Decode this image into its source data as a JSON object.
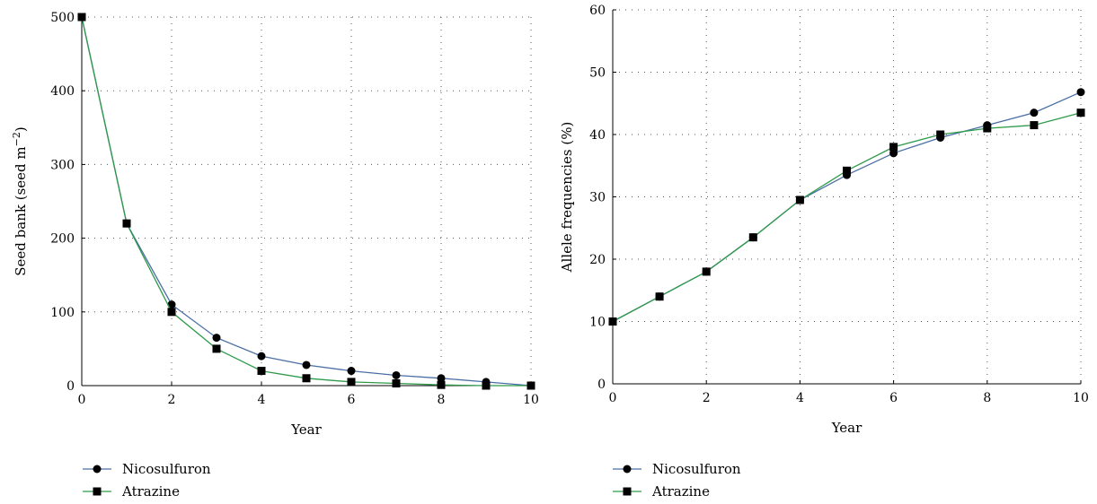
{
  "chart_data": [
    {
      "type": "line",
      "title": "",
      "xlabel": "Year",
      "ylabel": "Seed bank (seed m",
      "ylabel_sup": "−2",
      "ylabel_suffix": ")",
      "xlim": [
        0,
        10
      ],
      "ylim": [
        0,
        500
      ],
      "xticks": [
        0,
        2,
        4,
        6,
        8,
        10
      ],
      "yticks": [
        0,
        100,
        200,
        300,
        400,
        500
      ],
      "grid": true,
      "legend_position": "bottom-left",
      "series": [
        {
          "name": "Nicosulfuron",
          "marker": "circle",
          "color": "#4a6fa5",
          "x": [
            0,
            1,
            2,
            3,
            4,
            5,
            6,
            7,
            8,
            9,
            10
          ],
          "y": [
            500,
            220,
            110,
            65,
            40,
            28,
            20,
            14,
            10,
            5,
            0
          ]
        },
        {
          "name": "Atrazine",
          "marker": "square",
          "color": "#2e9a4a",
          "x": [
            0,
            1,
            2,
            3,
            4,
            5,
            6,
            7,
            8,
            9,
            10
          ],
          "y": [
            500,
            220,
            100,
            50,
            20,
            10,
            5,
            3,
            1,
            0,
            0
          ]
        }
      ]
    },
    {
      "type": "line",
      "title": "",
      "xlabel": "Year",
      "ylabel": "Allele frequencies (%)",
      "xlim": [
        0,
        10
      ],
      "ylim": [
        0,
        60
      ],
      "xticks": [
        0,
        2,
        4,
        6,
        8,
        10
      ],
      "yticks": [
        0,
        10,
        20,
        30,
        40,
        50,
        60
      ],
      "grid": true,
      "legend_position": "bottom-left",
      "series": [
        {
          "name": "Nicosulfuron",
          "marker": "circle",
          "color": "#4a6fa5",
          "x": [
            0,
            1,
            2,
            3,
            4,
            5,
            6,
            7,
            8,
            9,
            10
          ],
          "y": [
            10,
            14,
            18,
            23.5,
            29.5,
            33.5,
            37,
            39.5,
            41.5,
            43.5,
            46.8
          ]
        },
        {
          "name": "Atrazine",
          "marker": "square",
          "color": "#2e9a4a",
          "x": [
            0,
            1,
            2,
            3,
            4,
            5,
            6,
            7,
            8,
            9,
            10
          ],
          "y": [
            10,
            14,
            18,
            23.5,
            29.5,
            34.2,
            38,
            40,
            41,
            41.5,
            43.5
          ]
        }
      ]
    }
  ]
}
